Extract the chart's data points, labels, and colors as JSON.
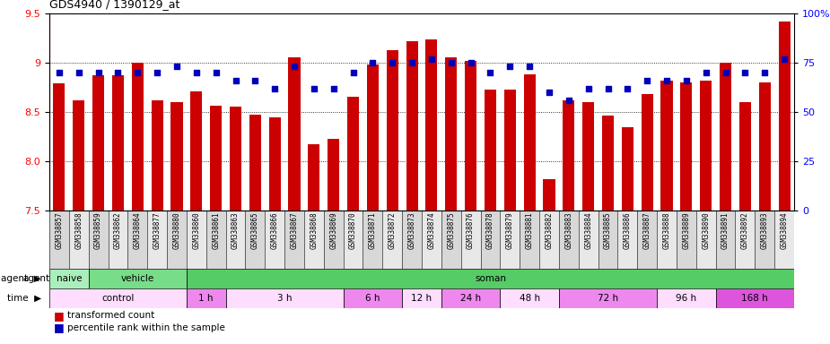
{
  "title": "GDS4940 / 1390129_at",
  "gsm_labels": [
    "GSM338857",
    "GSM338858",
    "GSM338859",
    "GSM338862",
    "GSM338864",
    "GSM338877",
    "GSM338880",
    "GSM338860",
    "GSM338861",
    "GSM338863",
    "GSM338865",
    "GSM338866",
    "GSM338867",
    "GSM338868",
    "GSM338869",
    "GSM338870",
    "GSM338871",
    "GSM338872",
    "GSM338873",
    "GSM338874",
    "GSM338875",
    "GSM338876",
    "GSM338878",
    "GSM338879",
    "GSM338881",
    "GSM338882",
    "GSM338883",
    "GSM338884",
    "GSM338885",
    "GSM338886",
    "GSM338887",
    "GSM338888",
    "GSM338889",
    "GSM338890",
    "GSM338891",
    "GSM338892",
    "GSM338893",
    "GSM338894"
  ],
  "bar_values": [
    8.79,
    8.62,
    8.87,
    8.87,
    9.0,
    8.62,
    8.6,
    8.71,
    8.56,
    8.55,
    8.47,
    8.45,
    9.05,
    8.17,
    8.23,
    8.65,
    8.98,
    9.13,
    9.22,
    9.24,
    9.05,
    9.02,
    8.73,
    8.73,
    8.88,
    7.82,
    8.62,
    8.6,
    8.46,
    8.35,
    8.68,
    8.82,
    8.8,
    8.82,
    9.0,
    8.6,
    8.8,
    9.42
  ],
  "dot_percentiles": [
    70,
    70,
    70,
    70,
    70,
    70,
    73,
    70,
    70,
    66,
    66,
    62,
    73,
    62,
    62,
    70,
    75,
    75,
    75,
    77,
    75,
    75,
    70,
    73,
    73,
    60,
    56,
    62,
    62,
    62,
    66,
    66,
    66,
    70,
    70,
    70,
    70,
    77
  ],
  "ylim_left": [
    7.5,
    9.5
  ],
  "ylim_right": [
    0,
    100
  ],
  "yticks_left": [
    7.5,
    8.0,
    8.5,
    9.0,
    9.5
  ],
  "yticks_right": [
    0,
    25,
    50,
    75,
    100
  ],
  "bar_color": "#cc0000",
  "dot_color": "#0000bb",
  "chart_bg": "#ffffff",
  "label_bg_even": "#d8d8d8",
  "label_bg_odd": "#e8e8e8",
  "agent_groups": [
    {
      "label": "naive",
      "start": 0,
      "end": 2,
      "color": "#aaeebb"
    },
    {
      "label": "vehicle",
      "start": 2,
      "end": 7,
      "color": "#77dd88"
    },
    {
      "label": "soman",
      "start": 7,
      "end": 38,
      "color": "#55cc66"
    }
  ],
  "time_groups": [
    {
      "label": "control",
      "start": 0,
      "end": 7,
      "color": "#ffddff"
    },
    {
      "label": "1 h",
      "start": 7,
      "end": 9,
      "color": "#ee88ee"
    },
    {
      "label": "3 h",
      "start": 9,
      "end": 15,
      "color": "#ffddff"
    },
    {
      "label": "6 h",
      "start": 15,
      "end": 18,
      "color": "#ee88ee"
    },
    {
      "label": "12 h",
      "start": 18,
      "end": 20,
      "color": "#ffddff"
    },
    {
      "label": "24 h",
      "start": 20,
      "end": 23,
      "color": "#ee88ee"
    },
    {
      "label": "48 h",
      "start": 23,
      "end": 26,
      "color": "#ffddff"
    },
    {
      "label": "72 h",
      "start": 26,
      "end": 31,
      "color": "#ee88ee"
    },
    {
      "label": "96 h",
      "start": 31,
      "end": 34,
      "color": "#ffddff"
    },
    {
      "label": "168 h",
      "start": 34,
      "end": 38,
      "color": "#dd55dd"
    }
  ],
  "legend_bar_label": "transformed count",
  "legend_dot_label": "percentile rank within the sample",
  "grid_yticks": [
    8.0,
    8.5,
    9.0
  ],
  "agent_label": "agent",
  "time_label": "time"
}
